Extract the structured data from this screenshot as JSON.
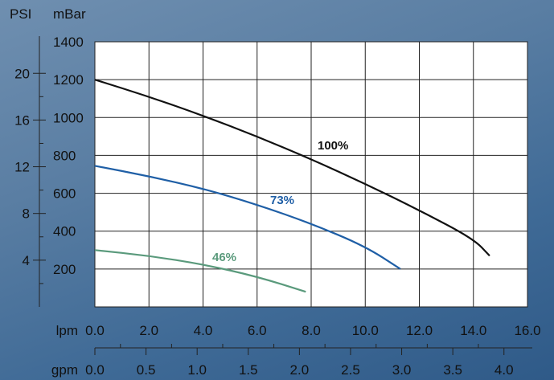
{
  "chart_data": {
    "type": "line",
    "title": "",
    "y_axis_left": {
      "unit_label": "PSI",
      "ticks": [
        20,
        16,
        12,
        8,
        4
      ],
      "range": [
        0,
        22.7
      ]
    },
    "y_axis_inner": {
      "unit_label": "mBar",
      "ticks": [
        1400,
        1200,
        1000,
        800,
        600,
        400,
        200
      ],
      "range": [
        0,
        1400
      ]
    },
    "x_axis_top": {
      "unit_label": "lpm",
      "ticks": [
        "0.0",
        "2.0",
        "4.0",
        "6.0",
        "8.0",
        "10.0",
        "12.0",
        "14.0",
        "16.0"
      ],
      "range": [
        0,
        16
      ]
    },
    "x_axis_bottom": {
      "unit_label": "gpm",
      "ticks": [
        "0.0",
        "0.5",
        "1.0",
        "1.5",
        "2.0",
        "2.5",
        "3.0",
        "3.5",
        "4.0"
      ],
      "range": [
        0,
        4.23
      ]
    },
    "grid": true,
    "series": [
      {
        "name": "100%",
        "color": "#111111",
        "x_lpm": [
          0,
          2,
          4,
          6,
          8,
          10,
          12,
          14,
          14.6
        ],
        "y_mbar": [
          1200,
          1110,
          1010,
          900,
          780,
          650,
          510,
          360,
          270
        ]
      },
      {
        "name": "73%",
        "color": "#1f5fa6",
        "x_lpm": [
          0,
          2,
          4,
          6,
          8,
          10,
          11.3
        ],
        "y_mbar": [
          745,
          690,
          625,
          540,
          440,
          320,
          200
        ]
      },
      {
        "name": "46%",
        "color": "#5a9a7c",
        "x_lpm": [
          0,
          2,
          4,
          6,
          7.8
        ],
        "y_mbar": [
          300,
          270,
          225,
          160,
          80
        ]
      }
    ]
  }
}
